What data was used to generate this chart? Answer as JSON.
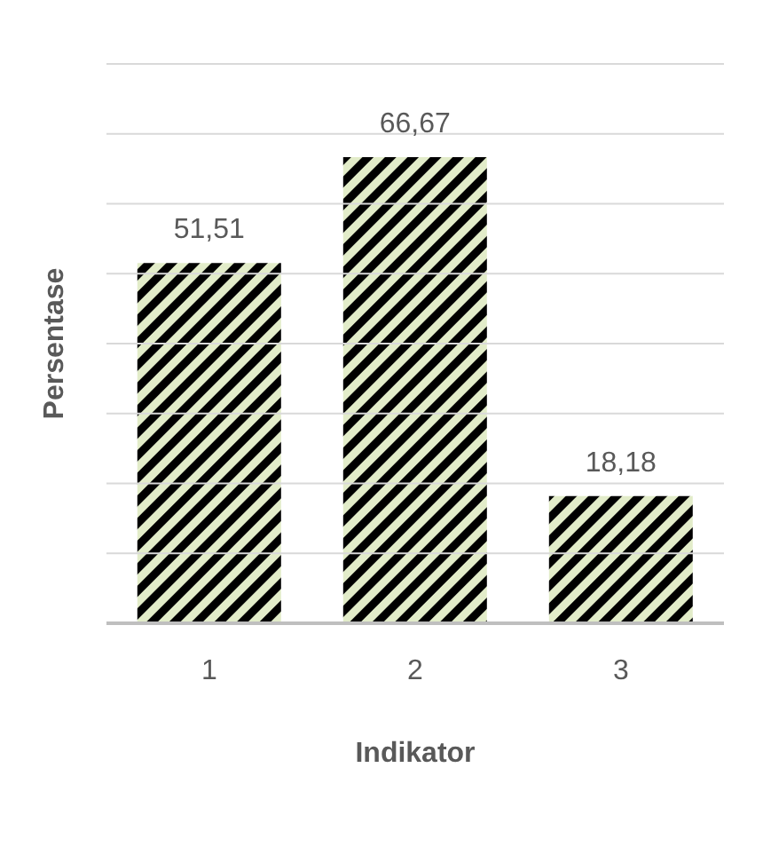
{
  "chart_data": {
    "type": "bar",
    "xlabel": "Indikator",
    "ylabel": "Persentase",
    "categories": [
      "1",
      "2",
      "3"
    ],
    "values": [
      51.51,
      66.67,
      18.18
    ],
    "value_labels": [
      "51,51",
      "66,67",
      "18,18"
    ],
    "color": "#000000",
    "ylim": [
      0,
      80
    ],
    "yticks": [
      {
        "value": 0,
        "label": null
      },
      {
        "value": 10,
        "label": null
      },
      {
        "value": 20,
        "label": null
      },
      {
        "value": 30,
        "label": null
      },
      {
        "value": 40,
        "label": null
      },
      {
        "value": 50,
        "label": null
      },
      {
        "value": 60,
        "label": null
      },
      {
        "value": 70,
        "label": null
      },
      {
        "value": 80,
        "label": null
      }
    ],
    "grid": "y",
    "tick_labels": "x",
    "legend": false
  }
}
